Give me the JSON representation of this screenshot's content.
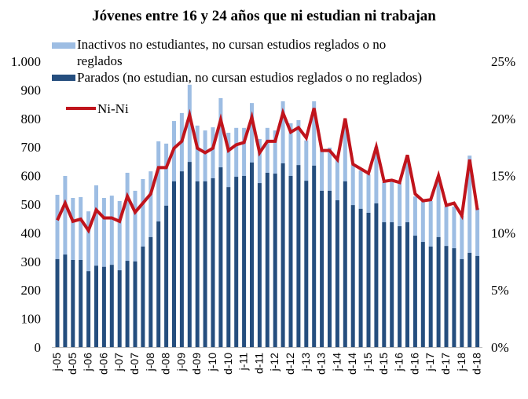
{
  "chart_data": {
    "type": "bar",
    "title": "Jóvenes entre 16 y 24 años que ni estudian ni trabajan",
    "xlabel": "",
    "ylabel": "",
    "ylim": [
      0,
      1000
    ],
    "y2lim": [
      0,
      25
    ],
    "yticks": [
      "0",
      "100",
      "200",
      "300",
      "400",
      "500",
      "600",
      "700",
      "800",
      "900",
      "1.000"
    ],
    "y2ticks": [
      "0%",
      "5%",
      "10%",
      "15%",
      "20%",
      "25%"
    ],
    "grid": false,
    "legend_position": "top-left",
    "x_tick_labels": [
      "j-05",
      "d-05",
      "j-06",
      "d-06",
      "j-07",
      "d-07",
      "j-08",
      "d-08",
      "j-09",
      "d-09",
      "j-10",
      "d-10",
      "j-11",
      "d-11",
      "j-12",
      "d-12",
      "j-13",
      "d-13",
      "j-14",
      "d-14",
      "j-15",
      "d-15",
      "j-16",
      "d-16",
      "j-17",
      "d-17",
      "j-18",
      "d-18"
    ],
    "x": [
      "2005Q2",
      "2005Q3",
      "2005Q4",
      "2006Q1",
      "2006Q2",
      "2006Q3",
      "2006Q4",
      "2007Q1",
      "2007Q2",
      "2007Q3",
      "2007Q4",
      "2008Q1",
      "2008Q2",
      "2008Q3",
      "2008Q4",
      "2009Q1",
      "2009Q2",
      "2009Q3",
      "2009Q4",
      "2010Q1",
      "2010Q2",
      "2010Q3",
      "2010Q4",
      "2011Q1",
      "2011Q2",
      "2011Q3",
      "2011Q4",
      "2012Q1",
      "2012Q2",
      "2012Q3",
      "2012Q4",
      "2013Q1",
      "2013Q2",
      "2013Q3",
      "2013Q4",
      "2014Q1",
      "2014Q2",
      "2014Q3",
      "2014Q4",
      "2015Q1",
      "2015Q2",
      "2015Q3",
      "2015Q4",
      "2016Q1",
      "2016Q2",
      "2016Q3",
      "2016Q4",
      "2017Q1",
      "2017Q2",
      "2017Q3",
      "2017Q4",
      "2018Q1",
      "2018Q2",
      "2018Q3",
      "2018Q4"
    ],
    "series": [
      {
        "name": "Parados (no estudian, no cursan estudios reglados o no reglados)",
        "type": "bar-stacked",
        "axis": "left",
        "color": "#254E7E",
        "values": [
          308,
          324,
          305,
          305,
          266,
          285,
          281,
          288,
          269,
          302,
          300,
          352,
          385,
          440,
          495,
          580,
          615,
          648,
          580,
          580,
          591,
          629,
          560,
          596,
          599,
          646,
          574,
          610,
          607,
          643,
          599,
          637,
          582,
          635,
          547,
          547,
          514,
          580,
          497,
          484,
          470,
          503,
          437,
          437,
          423,
          437,
          390,
          368,
          352,
          385,
          354,
          346,
          308,
          330,
          319
        ]
      },
      {
        "name": "Inactivos no estudiantes, no cursan estudios reglados o no reglados",
        "type": "bar-stacked",
        "axis": "left",
        "color": "#9DBDE3",
        "values": [
          225,
          275,
          217,
          220,
          209,
          281,
          241,
          242,
          242,
          308,
          247,
          236,
          230,
          280,
          217,
          211,
          204,
          270,
          195,
          178,
          178,
          242,
          190,
          171,
          168,
          208,
          154,
          157,
          151,
          217,
          184,
          157,
          141,
          225,
          145,
          151,
          143,
          208,
          140,
          134,
          134,
          198,
          140,
          145,
          151,
          231,
          137,
          143,
          159,
          206,
          138,
          146,
          151,
          340,
          167
        ]
      },
      {
        "name": "Ni-Ni",
        "type": "line",
        "axis": "right",
        "unit": "%",
        "color": "#C0141C",
        "values": [
          11.1,
          12.6,
          11.0,
          11.2,
          10.2,
          12.0,
          11.3,
          11.3,
          11.0,
          13.2,
          11.8,
          12.6,
          13.4,
          15.7,
          15.7,
          17.4,
          18.0,
          20.3,
          17.4,
          17.0,
          17.4,
          19.9,
          17.2,
          17.7,
          17.9,
          20.1,
          17.0,
          18.0,
          18.0,
          20.5,
          18.8,
          19.2,
          18.3,
          20.9,
          17.2,
          17.2,
          16.4,
          20.0,
          16.0,
          15.6,
          15.2,
          17.5,
          14.5,
          14.6,
          14.4,
          16.8,
          13.4,
          12.8,
          12.9,
          15.0,
          12.4,
          12.6,
          11.5,
          16.4,
          12.0
        ]
      }
    ],
    "legend": [
      {
        "label_line1": "Inactivos no estudiantes, no cursan estudios reglados o no",
        "label_line2": "reglados",
        "color": "#9DBDE3",
        "kind": "bar"
      },
      {
        "label_line1": "Parados (no estudian, no cursan estudios reglados o no reglados)",
        "label_line2": "",
        "color": "#254E7E",
        "kind": "bar"
      },
      {
        "label_line1": "Ni-Ni",
        "label_line2": "",
        "color": "#C0141C",
        "kind": "line"
      }
    ]
  }
}
